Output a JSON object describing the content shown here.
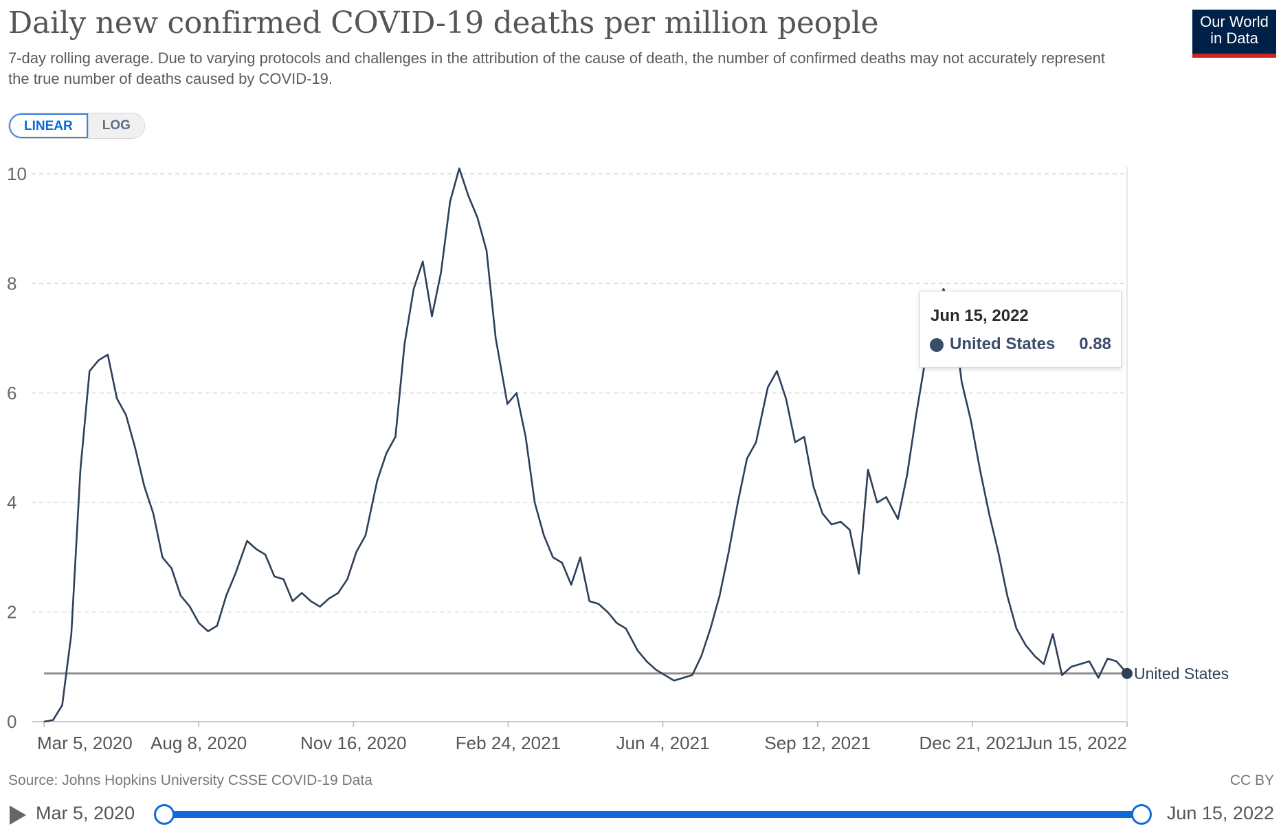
{
  "header": {
    "title": "Daily new confirmed COVID-19 deaths per million people",
    "subtitle": "7-day rolling average. Due to varying protocols and challenges in the attribution of the cause of death, the number of confirmed deaths may not accurately represent the true number of deaths caused by COVID-19.",
    "logo_line1": "Our World",
    "logo_line2": "in Data"
  },
  "scale_toggle": {
    "linear_label": "LINEAR",
    "log_label": "LOG",
    "selected": "LINEAR"
  },
  "tooltip": {
    "date": "Jun 15, 2022",
    "country": "United States",
    "value": "0.88"
  },
  "footer": {
    "source": "Source: Johns Hopkins University CSSE COVID-19 Data",
    "license": "CC BY"
  },
  "timeline": {
    "start_label": "Mar 5, 2020",
    "end_label": "Jun 15, 2022"
  },
  "colors": {
    "series": "#2d3f59",
    "brand_navy": "#002147",
    "brand_red": "#ce261e",
    "accent_blue": "#0f6ad8"
  },
  "chart_data": {
    "type": "line",
    "title": "Daily new confirmed COVID-19 deaths per million people",
    "xlabel": "",
    "ylabel": "",
    "ylim": [
      0,
      10
    ],
    "yticks": [
      "0",
      "2",
      "4",
      "6",
      "8",
      "10"
    ],
    "xticks": [
      "Mar 5, 2020",
      "Aug 8, 2020",
      "Nov 16, 2020",
      "Feb 24, 2021",
      "Jun 4, 2021",
      "Sep 12, 2021",
      "Dec 21, 2021",
      "Jun 15, 2022"
    ],
    "grid": "horizontal dashed",
    "reference_value": 0.88,
    "series": [
      {
        "name": "United States",
        "end_value": 0.88,
        "points": [
          [
            "2020-03-05",
            0.0
          ],
          [
            "2020-03-12",
            0.03
          ],
          [
            "2020-03-19",
            0.3
          ],
          [
            "2020-03-26",
            1.6
          ],
          [
            "2020-04-02",
            4.6
          ],
          [
            "2020-04-09",
            6.4
          ],
          [
            "2020-04-16",
            6.6
          ],
          [
            "2020-04-23",
            6.7
          ],
          [
            "2020-04-30",
            5.9
          ],
          [
            "2020-05-07",
            5.6
          ],
          [
            "2020-05-14",
            5.0
          ],
          [
            "2020-05-21",
            4.3
          ],
          [
            "2020-05-28",
            3.8
          ],
          [
            "2020-06-04",
            3.0
          ],
          [
            "2020-06-11",
            2.8
          ],
          [
            "2020-06-18",
            2.3
          ],
          [
            "2020-06-25",
            2.1
          ],
          [
            "2020-07-02",
            1.8
          ],
          [
            "2020-07-09",
            1.65
          ],
          [
            "2020-07-16",
            1.75
          ],
          [
            "2020-07-23",
            2.3
          ],
          [
            "2020-07-30",
            2.7
          ],
          [
            "2020-08-08",
            3.3
          ],
          [
            "2020-08-15",
            3.15
          ],
          [
            "2020-08-22",
            3.05
          ],
          [
            "2020-08-29",
            2.65
          ],
          [
            "2020-09-05",
            2.6
          ],
          [
            "2020-09-12",
            2.2
          ],
          [
            "2020-09-19",
            2.35
          ],
          [
            "2020-09-26",
            2.2
          ],
          [
            "2020-10-03",
            2.1
          ],
          [
            "2020-10-10",
            2.25
          ],
          [
            "2020-10-17",
            2.35
          ],
          [
            "2020-10-24",
            2.6
          ],
          [
            "2020-10-31",
            3.1
          ],
          [
            "2020-11-07",
            3.4
          ],
          [
            "2020-11-16",
            4.4
          ],
          [
            "2020-11-23",
            4.9
          ],
          [
            "2020-11-30",
            5.2
          ],
          [
            "2020-12-07",
            6.9
          ],
          [
            "2020-12-14",
            7.9
          ],
          [
            "2020-12-21",
            8.4
          ],
          [
            "2020-12-28",
            7.4
          ],
          [
            "2021-01-04",
            8.2
          ],
          [
            "2021-01-11",
            9.5
          ],
          [
            "2021-01-18",
            10.1
          ],
          [
            "2021-01-25",
            9.6
          ],
          [
            "2021-02-01",
            9.2
          ],
          [
            "2021-02-08",
            8.6
          ],
          [
            "2021-02-15",
            7.0
          ],
          [
            "2021-02-24",
            5.8
          ],
          [
            "2021-03-03",
            6.0
          ],
          [
            "2021-03-10",
            5.2
          ],
          [
            "2021-03-17",
            4.0
          ],
          [
            "2021-03-24",
            3.4
          ],
          [
            "2021-03-31",
            3.0
          ],
          [
            "2021-04-07",
            2.9
          ],
          [
            "2021-04-14",
            2.5
          ],
          [
            "2021-04-21",
            3.0
          ],
          [
            "2021-04-28",
            2.2
          ],
          [
            "2021-05-05",
            2.15
          ],
          [
            "2021-05-12",
            2.0
          ],
          [
            "2021-05-19",
            1.8
          ],
          [
            "2021-05-26",
            1.7
          ],
          [
            "2021-06-04",
            1.3
          ],
          [
            "2021-06-11",
            1.1
          ],
          [
            "2021-06-18",
            0.95
          ],
          [
            "2021-06-25",
            0.85
          ],
          [
            "2021-07-02",
            0.75
          ],
          [
            "2021-07-09",
            0.8
          ],
          [
            "2021-07-16",
            0.85
          ],
          [
            "2021-07-23",
            1.2
          ],
          [
            "2021-07-30",
            1.7
          ],
          [
            "2021-08-06",
            2.3
          ],
          [
            "2021-08-13",
            3.1
          ],
          [
            "2021-08-20",
            4.0
          ],
          [
            "2021-08-27",
            4.8
          ],
          [
            "2021-09-03",
            5.1
          ],
          [
            "2021-09-12",
            6.1
          ],
          [
            "2021-09-19",
            6.4
          ],
          [
            "2021-09-26",
            5.9
          ],
          [
            "2021-10-03",
            5.1
          ],
          [
            "2021-10-10",
            5.2
          ],
          [
            "2021-10-17",
            4.3
          ],
          [
            "2021-10-24",
            3.8
          ],
          [
            "2021-10-31",
            3.6
          ],
          [
            "2021-11-07",
            3.65
          ],
          [
            "2021-11-14",
            3.5
          ],
          [
            "2021-11-21",
            2.7
          ],
          [
            "2021-11-28",
            4.6
          ],
          [
            "2021-12-05",
            4.0
          ],
          [
            "2021-12-12",
            4.1
          ],
          [
            "2021-12-21",
            3.7
          ],
          [
            "2021-12-28",
            4.5
          ],
          [
            "2022-01-04",
            5.6
          ],
          [
            "2022-01-11",
            6.6
          ],
          [
            "2022-01-18",
            7.4
          ],
          [
            "2022-01-25",
            7.9
          ],
          [
            "2022-02-01",
            7.5
          ],
          [
            "2022-02-08",
            6.2
          ],
          [
            "2022-02-15",
            5.5
          ],
          [
            "2022-02-22",
            4.6
          ],
          [
            "2022-03-01",
            3.8
          ],
          [
            "2022-03-08",
            3.1
          ],
          [
            "2022-03-15",
            2.3
          ],
          [
            "2022-03-22",
            1.7
          ],
          [
            "2022-03-29",
            1.4
          ],
          [
            "2022-04-05",
            1.2
          ],
          [
            "2022-04-12",
            1.05
          ],
          [
            "2022-04-19",
            1.6
          ],
          [
            "2022-04-26",
            0.85
          ],
          [
            "2022-05-03",
            1.0
          ],
          [
            "2022-05-10",
            1.05
          ],
          [
            "2022-05-17",
            1.1
          ],
          [
            "2022-05-24",
            0.8
          ],
          [
            "2022-05-31",
            1.15
          ],
          [
            "2022-06-07",
            1.1
          ],
          [
            "2022-06-15",
            0.88
          ]
        ]
      }
    ]
  }
}
